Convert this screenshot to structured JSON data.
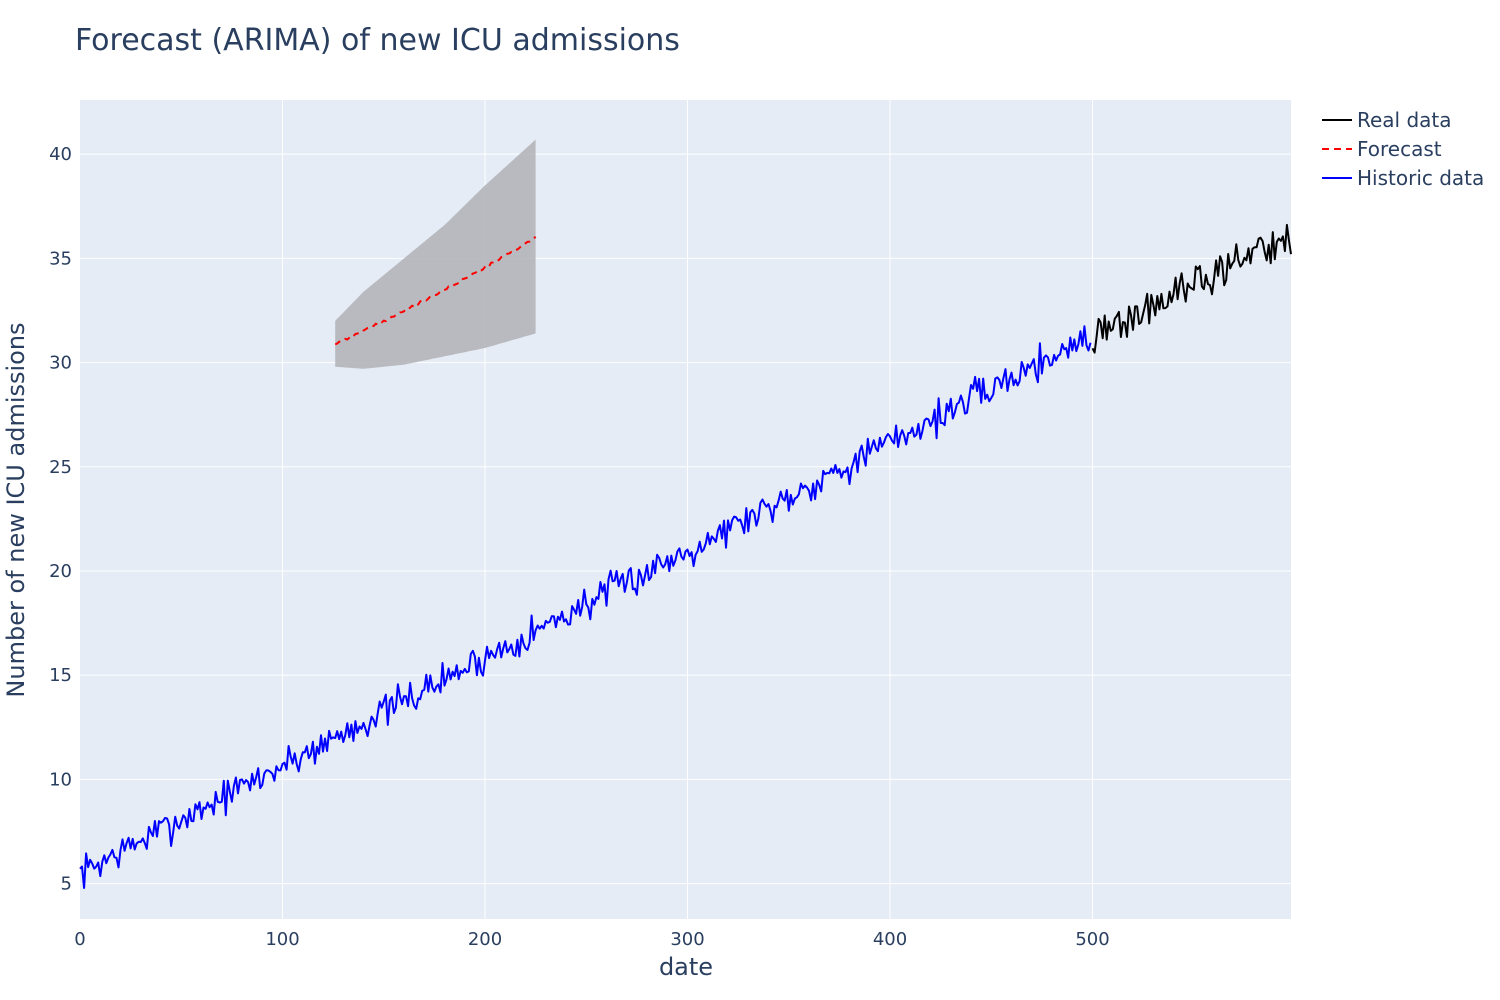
{
  "chart_data": {
    "type": "line",
    "title": "Forecast (ARIMA) of new ICU admissions",
    "xlabel": "date",
    "ylabel": "Number of new ICU admissions",
    "xlim": [
      0,
      598
    ],
    "ylim": [
      3.3,
      42.6
    ],
    "x_ticks": [
      0,
      100,
      200,
      300,
      400,
      500
    ],
    "y_ticks": [
      5,
      10,
      15,
      20,
      25,
      30,
      35,
      40
    ],
    "grid": true,
    "legend_position": "top-right",
    "series": [
      {
        "name": "Real data",
        "color": "#000000",
        "dash": "solid",
        "trend_start": [
          500,
          31.2
        ],
        "trend_end": [
          598,
          36.1
        ],
        "noise_amplitude": 0.55,
        "last_value": 35.2
      },
      {
        "name": "Forecast",
        "color": "#ff0000",
        "dash": "dashed",
        "trend_start": [
          126,
          30.9
        ],
        "trend_end": [
          225,
          36.0
        ],
        "confidence_band": {
          "color": "#b3b5b9",
          "lower": [
            [
              126,
              29.8
            ],
            [
              140,
              29.7
            ],
            [
              160,
              29.9
            ],
            [
              180,
              30.3
            ],
            [
              200,
              30.7
            ],
            [
              225,
              31.4
            ]
          ],
          "upper": [
            [
              126,
              32.0
            ],
            [
              140,
              33.4
            ],
            [
              160,
              35.0
            ],
            [
              180,
              36.6
            ],
            [
              200,
              38.5
            ],
            [
              225,
              40.7
            ]
          ]
        }
      },
      {
        "name": "Historic data",
        "color": "#0000ff",
        "dash": "solid",
        "trend_start": [
          0,
          5.5
        ],
        "trend_end": [
          499,
          31.3
        ],
        "noise_amplitude": 0.5
      }
    ]
  }
}
